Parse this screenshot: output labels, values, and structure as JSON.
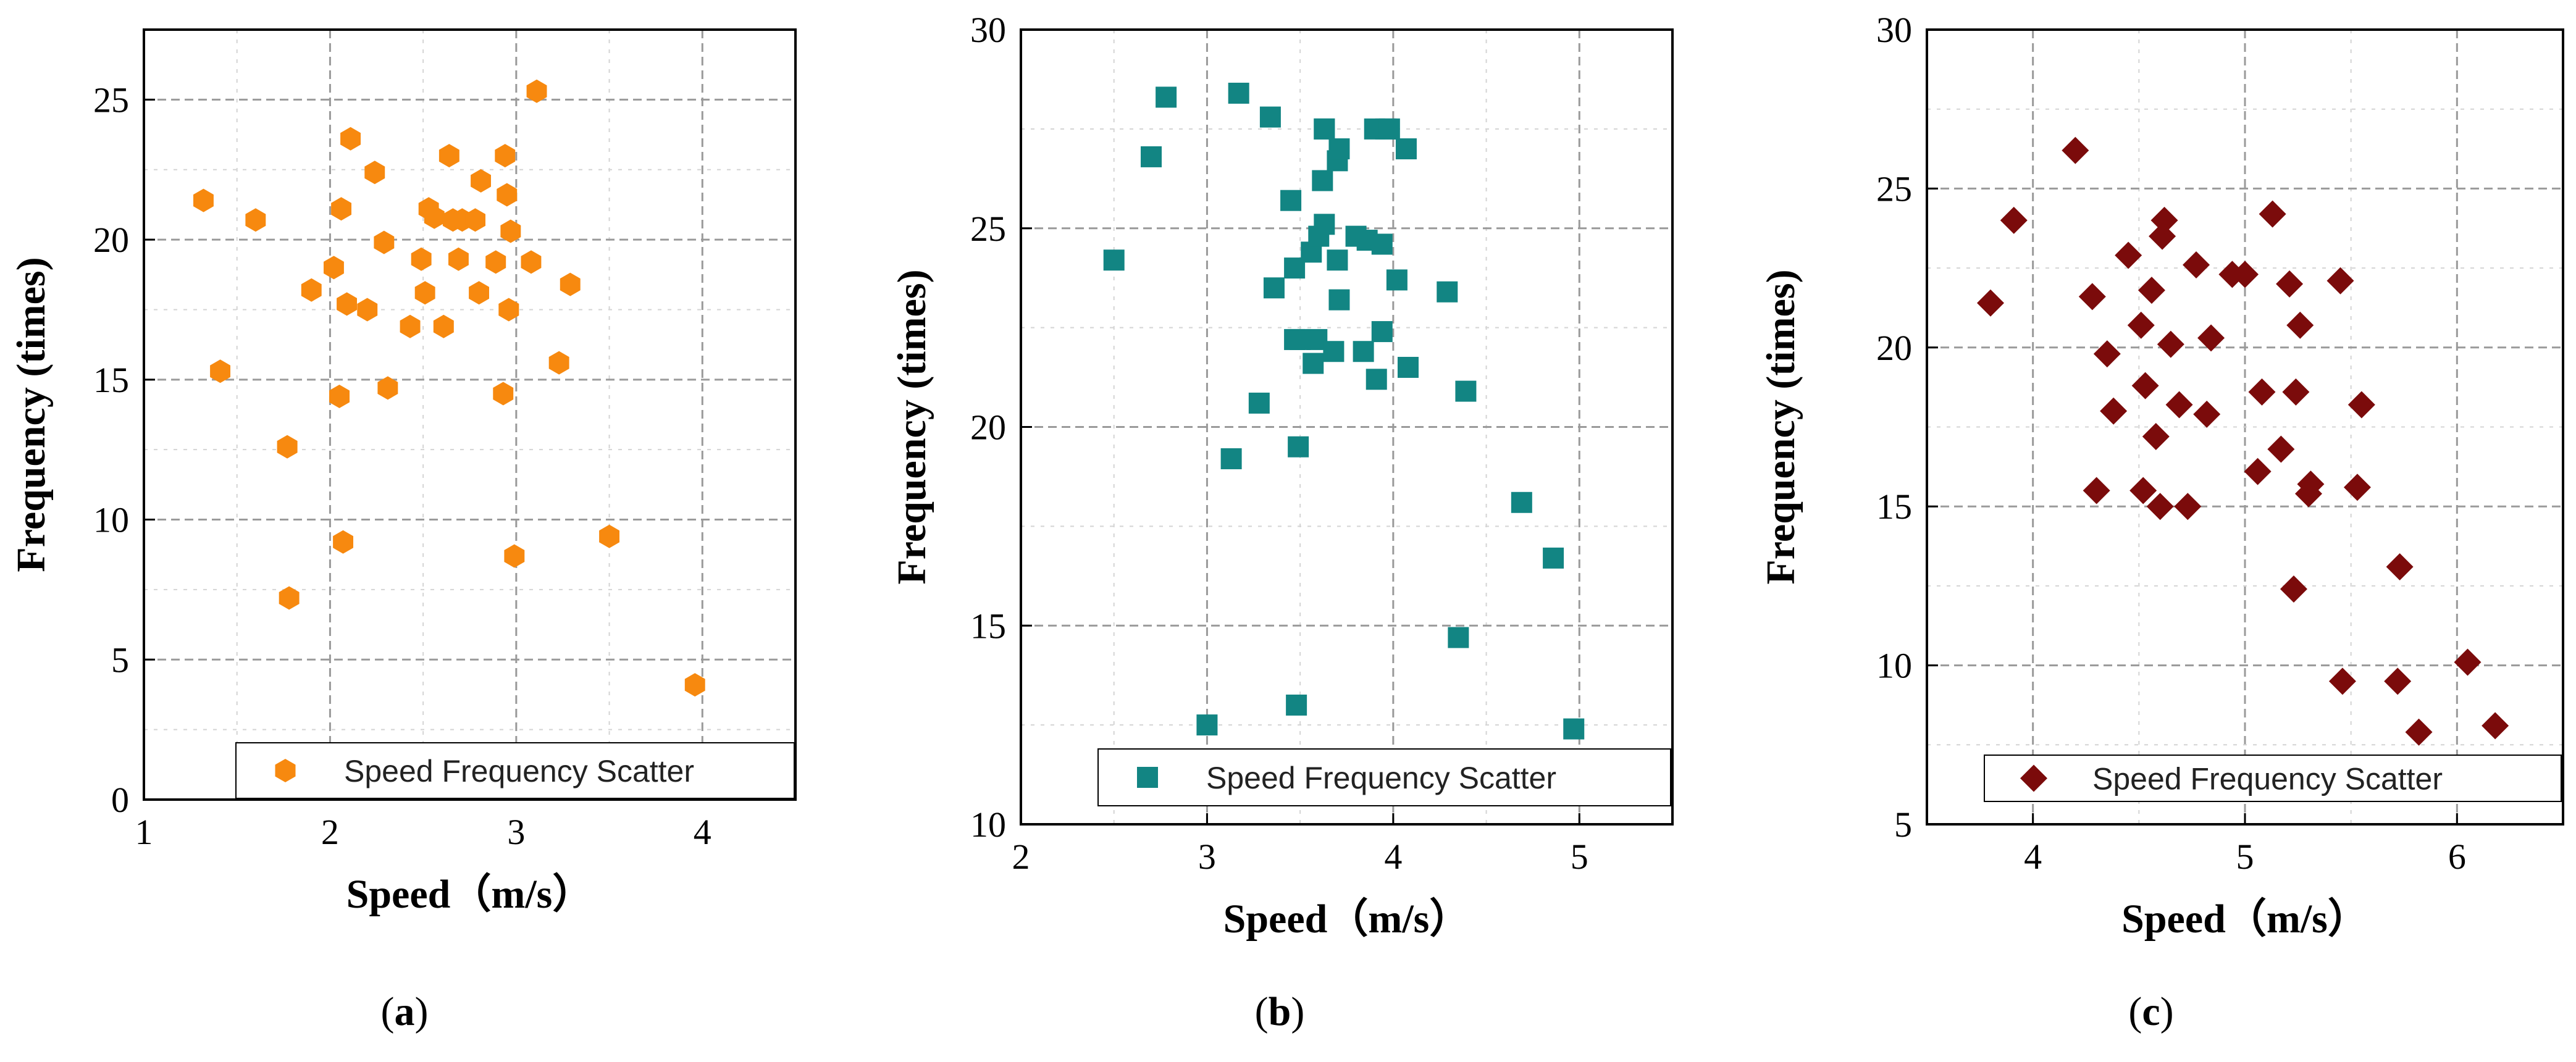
{
  "chart_data": [
    {
      "id": "a",
      "type": "scatter",
      "caption_letter": "a",
      "xlabel": "Speed（m/s）",
      "ylabel": "Frequency (times)",
      "xlim": [
        1,
        4.5
      ],
      "ylim": [
        0,
        27.5
      ],
      "xticks": [
        1,
        2,
        3,
        4
      ],
      "yticks": [
        0,
        5,
        10,
        15,
        20,
        25
      ],
      "grid": true,
      "legend": "Speed Frequency Scatter",
      "legend_position": "bottom-right",
      "marker": "hexagon",
      "color": "#f7890f",
      "x": [
        1.32,
        1.41,
        1.6,
        1.77,
        1.78,
        1.9,
        2.02,
        2.05,
        2.06,
        2.07,
        2.09,
        2.11,
        2.2,
        2.24,
        2.29,
        2.31,
        2.43,
        2.49,
        2.51,
        2.53,
        2.56,
        2.61,
        2.64,
        2.66,
        2.69,
        2.71,
        2.78,
        2.8,
        2.81,
        2.89,
        2.93,
        2.94,
        2.95,
        2.96,
        2.97,
        2.99,
        3.08,
        3.11,
        3.23,
        3.29,
        3.5,
        3.96
      ],
      "y": [
        21.4,
        15.3,
        20.7,
        12.6,
        7.2,
        18.2,
        19,
        14.4,
        21.1,
        9.2,
        17.7,
        23.6,
        17.5,
        22.4,
        19.9,
        14.7,
        16.9,
        19.3,
        18.1,
        21.1,
        20.8,
        16.9,
        23,
        20.7,
        19.3,
        20.7,
        20.7,
        18.1,
        22.1,
        19.2,
        14.5,
        23,
        21.6,
        17.5,
        20.3,
        8.7,
        19.2,
        25.3,
        15.6,
        18.4,
        9.4,
        4.1
      ]
    },
    {
      "id": "b",
      "type": "scatter",
      "caption_letter": "b",
      "xlabel": "Speed（m/s）",
      "ylabel": "Frequency (times)",
      "xlim": [
        2,
        5.5
      ],
      "ylim": [
        10,
        30
      ],
      "xticks": [
        2,
        3,
        4,
        5
      ],
      "yticks": [
        10,
        15,
        20,
        25,
        30
      ],
      "grid": true,
      "legend": "Speed Frequency Scatter",
      "legend_position": "bottom-right",
      "marker": "square",
      "color": "#128583",
      "x": [
        2.5,
        2.7,
        2.78,
        3.0,
        3.13,
        3.17,
        3.28,
        3.34,
        3.36,
        3.45,
        3.47,
        3.47,
        3.48,
        3.49,
        3.5,
        3.56,
        3.57,
        3.59,
        3.6,
        3.62,
        3.63,
        3.63,
        3.63,
        3.68,
        3.7,
        3.7,
        3.71,
        3.71,
        3.8,
        3.84,
        3.86,
        3.9,
        3.91,
        3.94,
        3.94,
        3.96,
        3.98,
        4.02,
        4.07,
        4.08,
        4.29,
        4.35,
        4.39,
        4.69,
        4.86,
        4.97
      ],
      "y": [
        24.2,
        26.8,
        28.3,
        12.5,
        19.2,
        28.4,
        20.6,
        27.8,
        23.5,
        25.7,
        24,
        22.2,
        13,
        19.5,
        22.2,
        24.4,
        21.6,
        22.2,
        24.8,
        26.2,
        25.1,
        27.5,
        27.5,
        21.9,
        24.2,
        26.7,
        23.2,
        27,
        24.8,
        21.9,
        24.7,
        27.5,
        21.2,
        22.4,
        24.6,
        27.5,
        27.5,
        23.7,
        27,
        21.5,
        23.4,
        14.7,
        20.9,
        18.1,
        16.7,
        12.4
      ]
    },
    {
      "id": "c",
      "type": "scatter",
      "caption_letter": "c",
      "xlabel": "Speed（m/s）",
      "ylabel": "Frequency (times)",
      "xlim": [
        3.5,
        6.5
      ],
      "ylim": [
        5,
        30
      ],
      "xticks": [
        4,
        5,
        6
      ],
      "yticks": [
        5,
        10,
        15,
        20,
        25,
        30
      ],
      "grid": true,
      "legend": "Speed Frequency Scatter",
      "legend_position": "bottom-right",
      "marker": "diamond",
      "color": "#7b0b0b",
      "x": [
        3.8,
        3.91,
        4.2,
        4.28,
        4.3,
        4.35,
        4.38,
        4.45,
        4.51,
        4.52,
        4.53,
        4.56,
        4.58,
        4.6,
        4.61,
        4.62,
        4.65,
        4.69,
        4.73,
        4.77,
        4.82,
        4.84,
        4.94,
        5.0,
        5.06,
        5.08,
        5.13,
        5.17,
        5.21,
        5.23,
        5.24,
        5.26,
        5.3,
        5.31,
        5.45,
        5.46,
        5.53,
        5.55,
        5.72,
        5.73,
        5.82,
        6.05,
        6.18
      ],
      "y": [
        21.4,
        24,
        26.2,
        21.6,
        15.5,
        19.8,
        18,
        22.9,
        20.7,
        15.5,
        18.8,
        21.8,
        17.2,
        15,
        23.5,
        24,
        20.1,
        18.2,
        15,
        22.6,
        17.9,
        20.3,
        22.3,
        22.3,
        16.1,
        18.6,
        24.2,
        16.8,
        22,
        12.4,
        18.6,
        20.7,
        15.4,
        15.7,
        22.1,
        9.5,
        15.6,
        18.2,
        9.5,
        13.1,
        7.9,
        10.1,
        8.1
      ]
    }
  ]
}
